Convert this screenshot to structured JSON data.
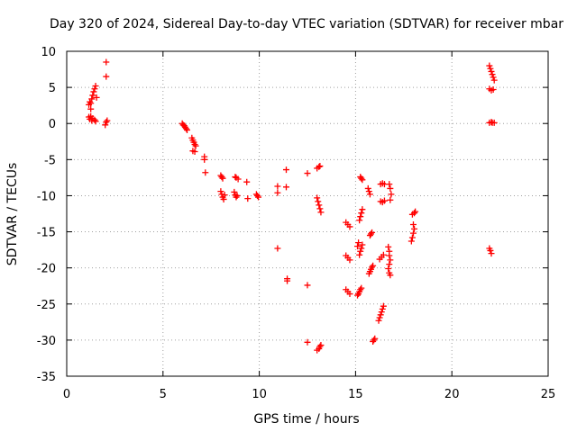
{
  "chart_data": {
    "type": "scatter",
    "title": "Day 320 of 2024, Sidereal Day-to-day VTEC variation (SDTVAR) for receiver mbar",
    "xlabel": "GPS time / hours",
    "ylabel": "SDTVAR / TECUs",
    "xlim": [
      0,
      25
    ],
    "ylim": [
      -35,
      10
    ],
    "x_ticks": [
      "0",
      "5",
      "10",
      "15",
      "20",
      "25"
    ],
    "y_ticks": [
      "10",
      "5",
      "0",
      "-5",
      "-10",
      "-15",
      "-20",
      "-25",
      "-30",
      "-35"
    ],
    "grid": true,
    "marker": "+",
    "color": "#ff0000",
    "series": [
      {
        "points": [
          [
            1.15,
            0.9
          ],
          [
            1.2,
            0.6
          ],
          [
            1.25,
            1.0
          ],
          [
            1.3,
            0.4
          ],
          [
            1.35,
            0.7
          ],
          [
            1.45,
            0.5
          ],
          [
            1.5,
            0.3
          ],
          [
            1.15,
            2.6
          ],
          [
            1.2,
            3.0
          ],
          [
            1.25,
            2.8
          ],
          [
            1.3,
            3.4
          ],
          [
            1.35,
            3.9
          ],
          [
            1.4,
            4.4
          ],
          [
            1.45,
            4.8
          ],
          [
            1.5,
            5.2
          ],
          [
            1.55,
            3.6
          ],
          [
            1.25,
            2.0
          ],
          [
            2.05,
            8.5
          ],
          [
            2.05,
            6.5
          ],
          [
            2.0,
            -0.2
          ],
          [
            2.05,
            0.2
          ],
          [
            2.1,
            0.4
          ],
          [
            6.0,
            0.0
          ],
          [
            6.05,
            -0.2
          ],
          [
            6.1,
            -0.3
          ],
          [
            6.15,
            -0.5
          ],
          [
            6.2,
            -0.7
          ],
          [
            6.25,
            -0.9
          ],
          [
            6.5,
            -2.0
          ],
          [
            6.55,
            -2.3
          ],
          [
            6.6,
            -2.6
          ],
          [
            6.65,
            -2.9
          ],
          [
            6.7,
            -3.1
          ],
          [
            6.55,
            -3.8
          ],
          [
            6.65,
            -3.9
          ],
          [
            7.15,
            -4.6
          ],
          [
            7.15,
            -5.0
          ],
          [
            7.2,
            -6.8
          ],
          [
            8.0,
            -7.2
          ],
          [
            8.05,
            -7.4
          ],
          [
            8.1,
            -7.6
          ],
          [
            8.0,
            -9.4
          ],
          [
            8.05,
            -9.8
          ],
          [
            8.1,
            -10.2
          ],
          [
            8.15,
            -10.5
          ],
          [
            8.2,
            -9.9
          ],
          [
            8.75,
            -7.4
          ],
          [
            8.8,
            -7.5
          ],
          [
            8.9,
            -7.7
          ],
          [
            8.7,
            -9.5
          ],
          [
            8.75,
            -9.9
          ],
          [
            8.8,
            -10.2
          ],
          [
            8.85,
            -10.0
          ],
          [
            9.35,
            -8.1
          ],
          [
            9.4,
            -10.4
          ],
          [
            9.85,
            -9.8
          ],
          [
            9.9,
            -10.0
          ],
          [
            9.95,
            -10.2
          ],
          [
            10.95,
            -8.7
          ],
          [
            10.95,
            -9.6
          ],
          [
            11.4,
            -8.8
          ],
          [
            11.4,
            -6.4
          ],
          [
            10.95,
            -17.3
          ],
          [
            11.45,
            -21.5
          ],
          [
            11.45,
            -21.8
          ],
          [
            12.5,
            -6.9
          ],
          [
            12.5,
            -22.4
          ],
          [
            12.5,
            -30.3
          ],
          [
            13.0,
            -6.2
          ],
          [
            13.1,
            -6.0
          ],
          [
            13.15,
            -5.9
          ],
          [
            13.0,
            -10.3
          ],
          [
            13.05,
            -10.8
          ],
          [
            13.1,
            -11.3
          ],
          [
            13.15,
            -11.8
          ],
          [
            13.2,
            -12.3
          ],
          [
            13.0,
            -31.4
          ],
          [
            13.1,
            -31.2
          ],
          [
            13.15,
            -30.9
          ],
          [
            13.2,
            -30.7
          ],
          [
            14.5,
            -13.7
          ],
          [
            14.6,
            -14.0
          ],
          [
            14.7,
            -14.3
          ],
          [
            14.5,
            -18.3
          ],
          [
            14.6,
            -18.6
          ],
          [
            14.7,
            -18.9
          ],
          [
            14.5,
            -23.0
          ],
          [
            14.6,
            -23.3
          ],
          [
            14.7,
            -23.6
          ],
          [
            15.1,
            -17.0
          ],
          [
            15.15,
            -16.5
          ],
          [
            15.2,
            -13.4
          ],
          [
            15.25,
            -12.9
          ],
          [
            15.3,
            -12.4
          ],
          [
            15.35,
            -11.9
          ],
          [
            15.2,
            -18.2
          ],
          [
            15.25,
            -17.7
          ],
          [
            15.3,
            -17.3
          ],
          [
            15.35,
            -16.8
          ],
          [
            15.1,
            -23.8
          ],
          [
            15.15,
            -23.6
          ],
          [
            15.2,
            -23.3
          ],
          [
            15.25,
            -23.0
          ],
          [
            15.3,
            -22.8
          ],
          [
            15.25,
            -7.4
          ],
          [
            15.3,
            -7.6
          ],
          [
            15.35,
            -7.8
          ],
          [
            15.65,
            -9.0
          ],
          [
            15.7,
            -9.4
          ],
          [
            15.75,
            -9.8
          ],
          [
            15.75,
            -15.5
          ],
          [
            15.8,
            -15.3
          ],
          [
            15.85,
            -15.1
          ],
          [
            15.7,
            -20.8
          ],
          [
            15.75,
            -20.5
          ],
          [
            15.8,
            -20.2
          ],
          [
            15.85,
            -19.9
          ],
          [
            15.9,
            -19.7
          ],
          [
            15.9,
            -30.2
          ],
          [
            15.95,
            -30.0
          ],
          [
            16.0,
            -29.8
          ],
          [
            16.3,
            -8.4
          ],
          [
            16.4,
            -8.3
          ],
          [
            16.5,
            -8.4
          ],
          [
            16.3,
            -10.8
          ],
          [
            16.4,
            -10.9
          ],
          [
            16.5,
            -10.7
          ],
          [
            16.25,
            -18.8
          ],
          [
            16.35,
            -18.5
          ],
          [
            16.45,
            -18.2
          ],
          [
            16.2,
            -27.3
          ],
          [
            16.25,
            -26.9
          ],
          [
            16.3,
            -26.5
          ],
          [
            16.35,
            -26.1
          ],
          [
            16.4,
            -25.7
          ],
          [
            16.45,
            -25.3
          ],
          [
            16.75,
            -8.4
          ],
          [
            16.8,
            -9.0
          ],
          [
            16.85,
            -9.8
          ],
          [
            16.8,
            -10.6
          ],
          [
            16.7,
            -17.1
          ],
          [
            16.75,
            -17.7
          ],
          [
            16.75,
            -18.3
          ],
          [
            16.8,
            -18.9
          ],
          [
            16.75,
            -19.5
          ],
          [
            16.7,
            -20.1
          ],
          [
            16.75,
            -20.7
          ],
          [
            16.8,
            -21.0
          ],
          [
            17.9,
            -16.3
          ],
          [
            17.95,
            -15.8
          ],
          [
            18.0,
            -15.2
          ],
          [
            18.05,
            -14.6
          ],
          [
            18.0,
            -14.0
          ],
          [
            17.95,
            -12.6
          ],
          [
            18.05,
            -12.4
          ],
          [
            18.1,
            -12.2
          ],
          [
            21.95,
            8.0
          ],
          [
            22.0,
            7.6
          ],
          [
            22.05,
            7.2
          ],
          [
            22.1,
            6.8
          ],
          [
            22.15,
            6.4
          ],
          [
            22.2,
            6.0
          ],
          [
            21.95,
            4.8
          ],
          [
            22.05,
            4.6
          ],
          [
            22.15,
            4.7
          ],
          [
            21.95,
            0.1
          ],
          [
            22.05,
            0.2
          ],
          [
            22.1,
            0.1
          ],
          [
            22.2,
            0.1
          ],
          [
            21.95,
            -17.3
          ],
          [
            22.0,
            -17.6
          ],
          [
            22.05,
            -18.0
          ]
        ]
      }
    ]
  }
}
